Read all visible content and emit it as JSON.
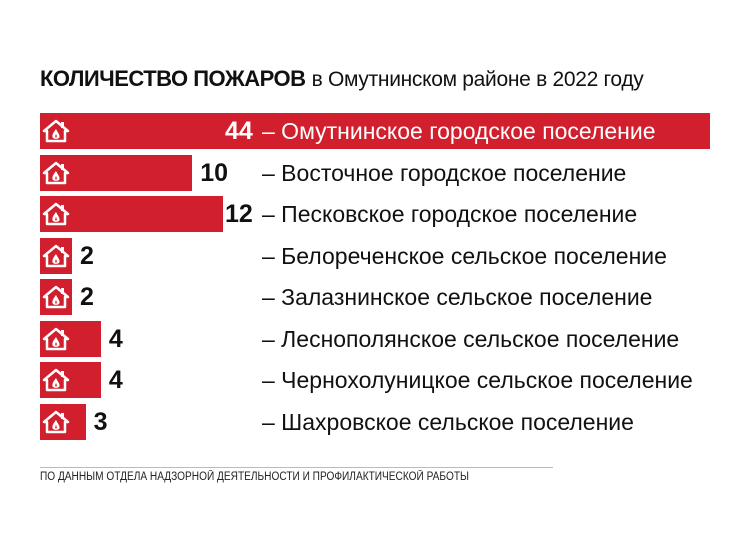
{
  "chart_data": {
    "type": "bar",
    "orientation": "horizontal",
    "title_bold": "КОЛИЧЕСТВО ПОЖАРОВ",
    "title_rest": "в Омутнинском районе в 2022 году",
    "categories": [
      "– Омутнинское городское поселение",
      "– Восточное городское поселение",
      "– Песковское городское поселение",
      "– Белореченское сельское поселение",
      "– Залазнинское сельское поселение",
      "– Леснополянское сельское поселение",
      "– Чернохолуницкое сельское поселение",
      "– Шахровское сельское поселение"
    ],
    "values": [
      44,
      10,
      12,
      2,
      2,
      4,
      4,
      3
    ],
    "xlim": [
      0,
      44
    ],
    "grid": false,
    "icon": "house-fire-icon",
    "bar_color": "#d11f2e",
    "source": "ПО ДАННЫМ ОТДЕЛА НАДЗОРНОЙ ДЕЯТЕЛЬНОСТИ И ПРОФИЛАКТИЧЕСКОЙ РАБОТЫ"
  }
}
